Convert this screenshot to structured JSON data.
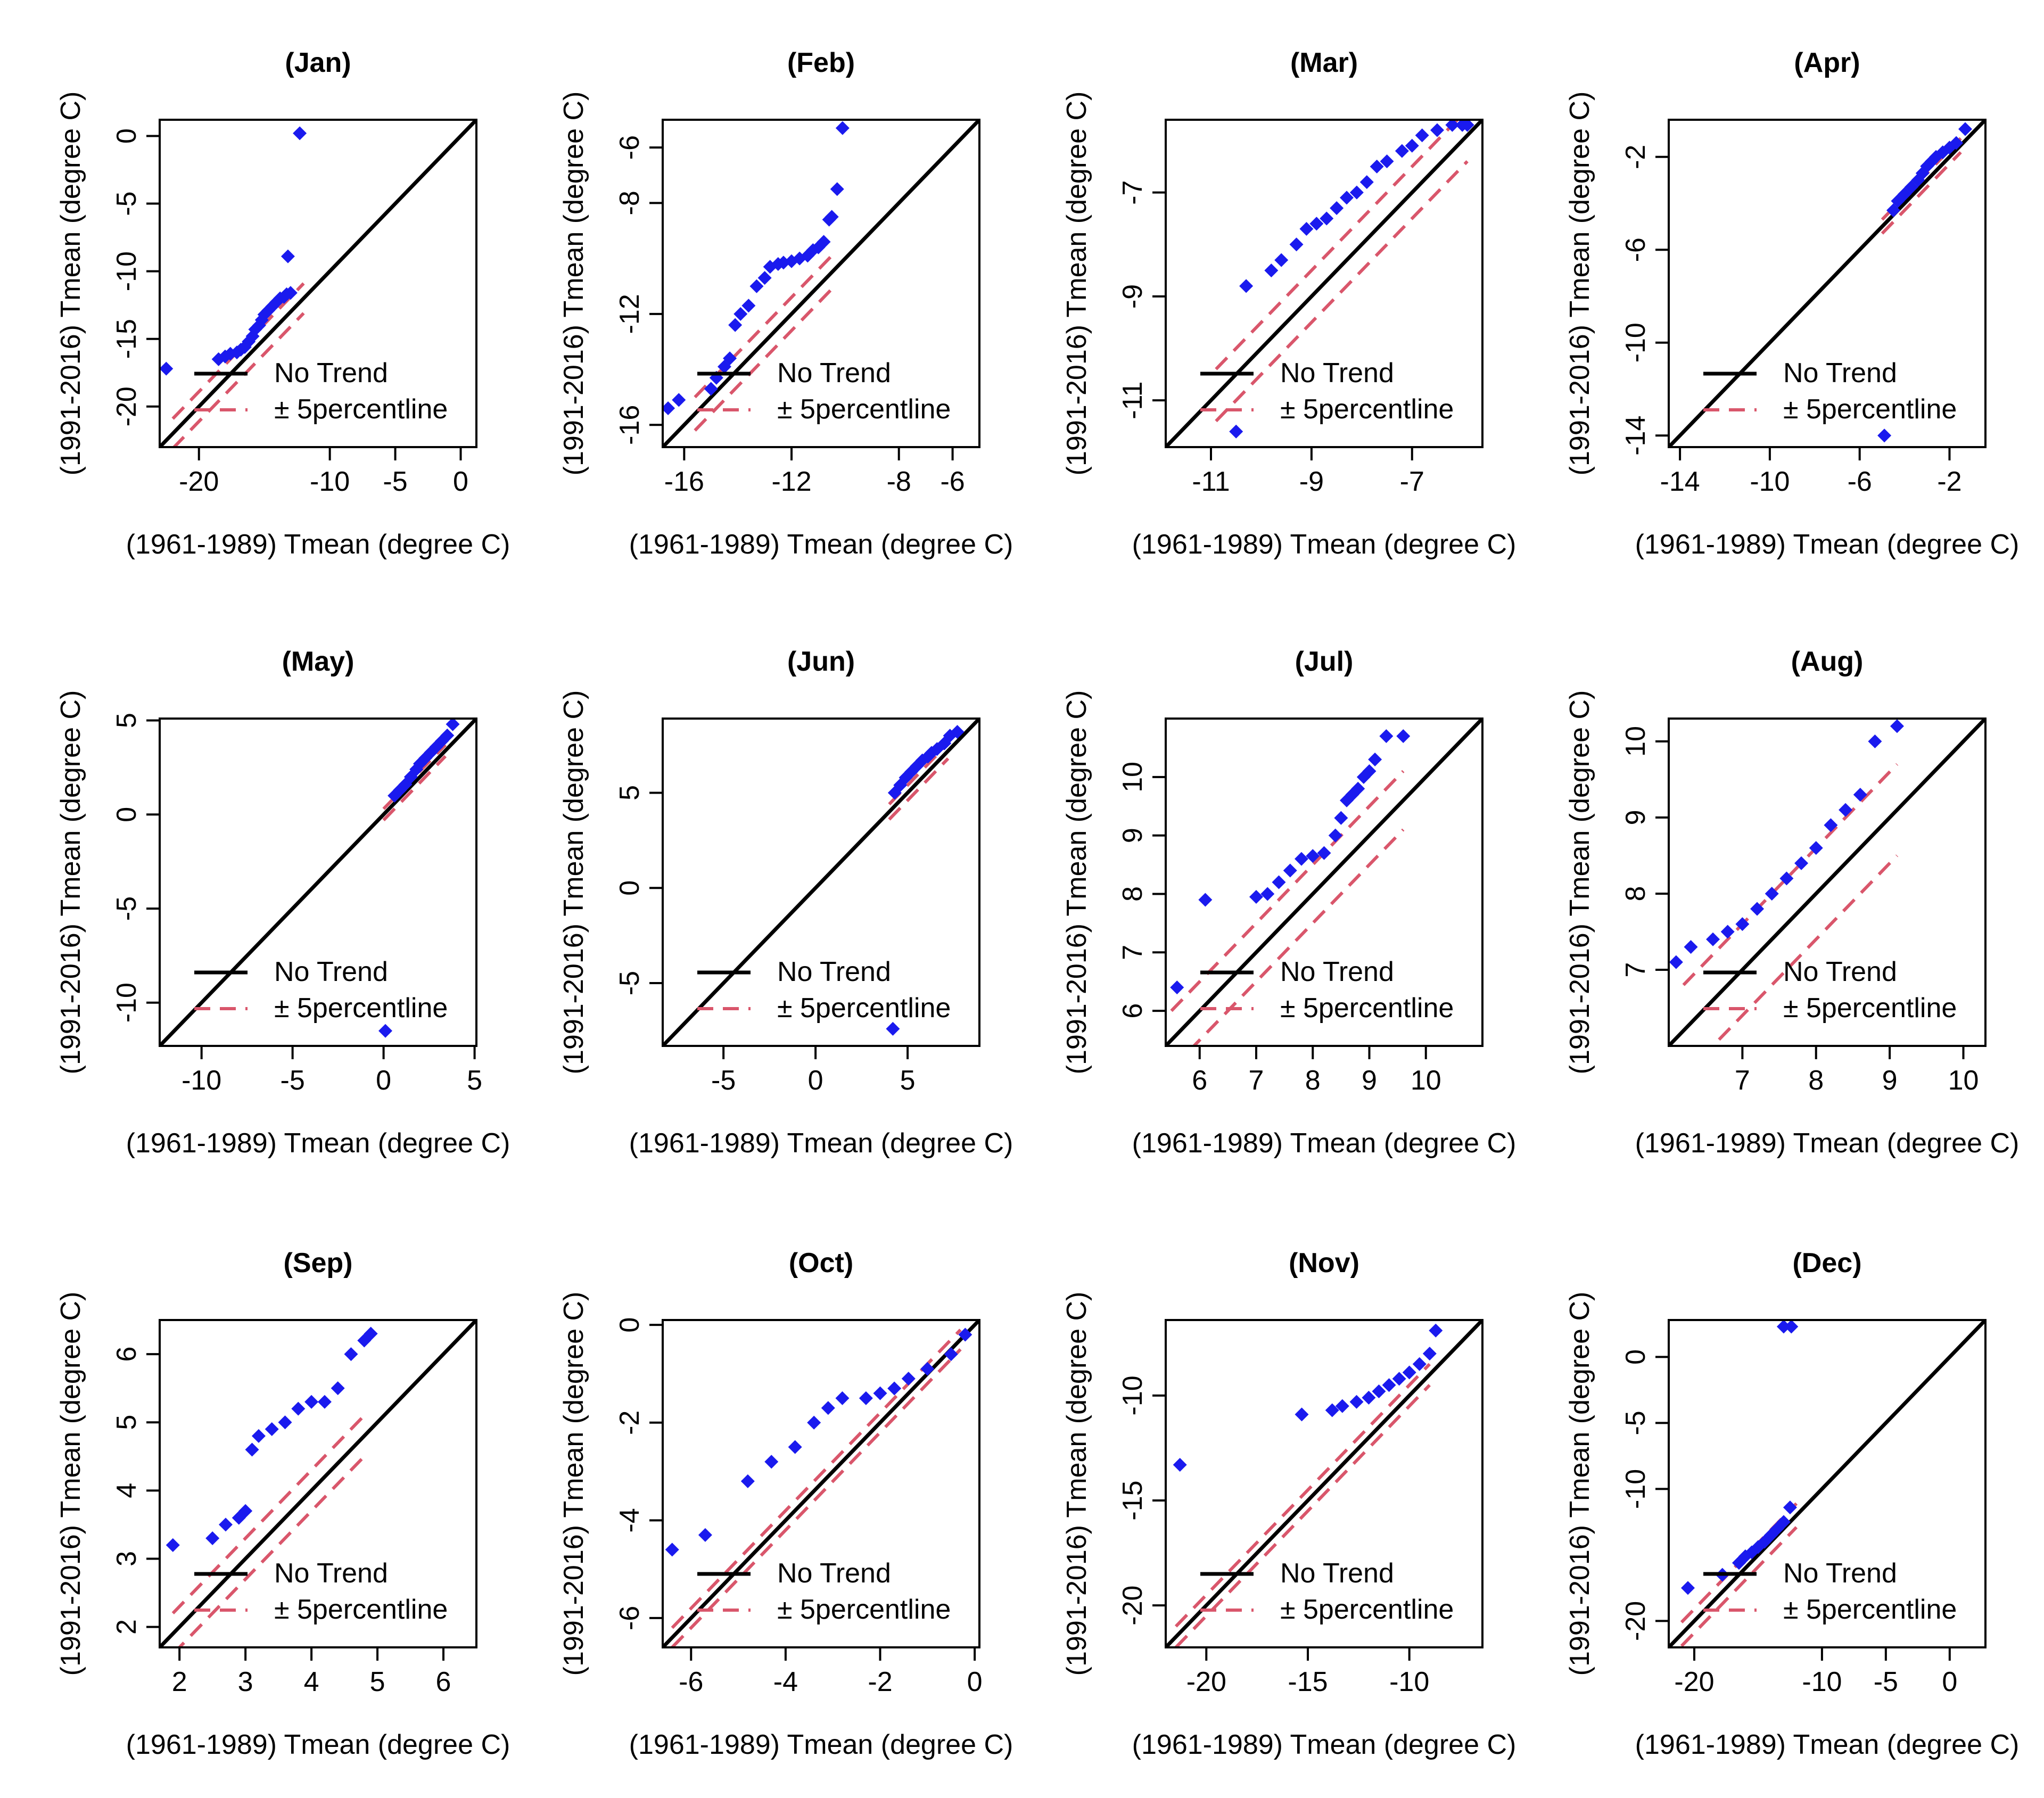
{
  "colors": {
    "points": "#1a1aee",
    "identity": "#000000",
    "band": "#d9566b"
  },
  "chart_data": [
    {
      "type": "scatter",
      "title": "(Jan)",
      "xlabel": "(1961-1989) Tmean (degree C)",
      "ylabel": "(1991-2016) Tmean (degree C)",
      "xlim": [
        -23,
        1.2
      ],
      "ylim": [
        -23,
        1.2
      ],
      "xticks": [
        -20,
        -10,
        -5,
        0
      ],
      "yticks": [
        0,
        -5,
        -10,
        -15,
        -20
      ],
      "legend": {
        "identity": "No Trend",
        "band": "± 5percentline"
      },
      "identity": [
        -23,
        1.2
      ],
      "band": {
        "x": [
          -22,
          -12
        ],
        "offset": 1.1
      },
      "x": [
        -22.5,
        -18.5,
        -18.0,
        -17.6,
        -17.1,
        -16.8,
        -16.5,
        -16.2,
        -15.9,
        -15.7,
        -15.4,
        -15.2,
        -15.0,
        -14.7,
        -14.4,
        -14.1,
        -13.8,
        -13.5,
        -13.3,
        -13.0,
        -13.2,
        -12.3
      ],
      "y": [
        -17.2,
        -16.5,
        -16.3,
        -16.1,
        -16.0,
        -15.8,
        -15.6,
        -15.2,
        -14.8,
        -14.3,
        -14.0,
        -13.6,
        -13.2,
        -12.9,
        -12.6,
        -12.3,
        -12.0,
        -11.9,
        -11.7,
        -11.6,
        -8.9,
        0.2
      ]
    },
    {
      "type": "scatter",
      "title": "(Feb)",
      "xlabel": "(1961-1989) Tmean (degree C)",
      "ylabel": "(1991-2016) Tmean (degree C)",
      "xlim": [
        -16.8,
        -5.0
      ],
      "ylim": [
        -16.8,
        -5.0
      ],
      "xticks": [
        -16,
        -12,
        -8,
        -6
      ],
      "yticks": [
        -6,
        -8,
        -12,
        -16
      ],
      "legend": {
        "identity": "No Trend",
        "band": "± 5percentline"
      },
      "identity": [
        -16.8,
        -5.0
      ],
      "band": {
        "x": [
          -15.6,
          -10.5
        ],
        "offset": 0.6
      },
      "x": [
        -16.6,
        -16.2,
        -15.0,
        -14.8,
        -14.5,
        -14.3,
        -14.1,
        -13.9,
        -13.6,
        -13.3,
        -13.0,
        -12.8,
        -12.5,
        -12.3,
        -12.0,
        -11.7,
        -11.4,
        -11.2,
        -11.0,
        -10.8,
        -10.6,
        -10.5,
        -10.3,
        -10.1
      ],
      "y": [
        -15.4,
        -15.1,
        -14.7,
        -14.3,
        -13.9,
        -13.6,
        -12.4,
        -12.0,
        -11.7,
        -11.0,
        -10.7,
        -10.3,
        -10.2,
        -10.15,
        -10.1,
        -10.0,
        -9.9,
        -9.7,
        -9.6,
        -9.4,
        -8.6,
        -8.5,
        -7.5,
        -5.3
      ]
    },
    {
      "type": "scatter",
      "title": "(Mar)",
      "xlabel": "(1961-1989) Tmean (degree C)",
      "ylabel": "(1991-2016) Tmean (degree C)",
      "xlim": [
        -11.9,
        -5.6
      ],
      "ylim": [
        -11.9,
        -5.6
      ],
      "xticks": [
        -11,
        -9,
        -7
      ],
      "yticks": [
        -7,
        -9,
        -11
      ],
      "legend": {
        "identity": "No Trend",
        "band": "± 5percentline"
      },
      "identity": [
        -11.9,
        -5.6
      ],
      "band": {
        "x": [
          -10.9,
          -5.9
        ],
        "offset": 0.5
      },
      "x": [
        -10.5,
        -10.3,
        -9.8,
        -9.6,
        -9.3,
        -9.1,
        -8.9,
        -8.7,
        -8.5,
        -8.3,
        -8.1,
        -7.9,
        -7.7,
        -7.5,
        -7.2,
        -7.0,
        -6.8,
        -6.5,
        -6.2,
        -6.0,
        -5.9
      ],
      "y": [
        -11.6,
        -8.8,
        -8.5,
        -8.3,
        -8.0,
        -7.7,
        -7.6,
        -7.5,
        -7.3,
        -7.1,
        -7.0,
        -6.8,
        -6.5,
        -6.4,
        -6.2,
        -6.1,
        -5.9,
        -5.8,
        -5.7,
        -5.7,
        -5.7
      ]
    },
    {
      "type": "scatter",
      "title": "(Apr)",
      "xlabel": "(1961-1989) Tmean (degree C)",
      "ylabel": "(1991-2016) Tmean (degree C)",
      "xlim": [
        -14.5,
        -0.4
      ],
      "ylim": [
        -14.5,
        -0.4
      ],
      "xticks": [
        -14,
        -10,
        -6,
        -2
      ],
      "yticks": [
        -2,
        -6,
        -10,
        -14
      ],
      "legend": {
        "identity": "No Trend",
        "band": "± 5percentline"
      },
      "identity": [
        -14.5,
        -0.4
      ],
      "band": {
        "x": [
          -5.0,
          -1.5
        ],
        "offset": 0.3
      },
      "x": [
        -4.9,
        -4.5,
        -4.3,
        -4.0,
        -3.7,
        -3.4,
        -3.2,
        -3.0,
        -2.8,
        -2.6,
        -2.3,
        -2.0,
        -1.7,
        -1.3
      ],
      "y": [
        -14.0,
        -4.3,
        -3.9,
        -3.6,
        -3.3,
        -3.0,
        -2.7,
        -2.4,
        -2.2,
        -2.0,
        -1.8,
        -1.6,
        -1.4,
        -0.8
      ]
    },
    {
      "type": "scatter",
      "title": "(May)",
      "xlabel": "(1961-1989) Tmean (degree C)",
      "ylabel": "(1991-2016) Tmean (degree C)",
      "xlim": [
        -12.3,
        5.1
      ],
      "ylim": [
        -12.3,
        5.1
      ],
      "xticks": [
        -10,
        -5,
        0,
        5
      ],
      "yticks": [
        5,
        0,
        -5,
        -10
      ],
      "legend": {
        "identity": "No Trend",
        "band": "± 5percentline"
      },
      "identity": [
        -12.3,
        5.1
      ],
      "band": {
        "x": [
          0.0,
          3.4
        ],
        "offset": 0.3
      },
      "x": [
        0.1,
        0.6,
        0.9,
        1.2,
        1.5,
        1.8,
        2.0,
        2.3,
        2.6,
        2.9,
        3.2,
        3.5,
        3.8
      ],
      "y": [
        -11.5,
        1.0,
        1.3,
        1.6,
        2.0,
        2.4,
        2.7,
        3.0,
        3.3,
        3.6,
        3.9,
        4.2,
        4.8
      ]
    },
    {
      "type": "scatter",
      "title": "(Jun)",
      "xlabel": "(1961-1989) Tmean (degree C)",
      "ylabel": "(1991-2016) Tmean (degree C)",
      "xlim": [
        -8.3,
        8.9
      ],
      "ylim": [
        -8.3,
        8.9
      ],
      "xticks": [
        -5,
        0,
        5
      ],
      "yticks": [
        5,
        0,
        -5
      ],
      "legend": {
        "identity": "No Trend",
        "band": "± 5percentline"
      },
      "identity": [
        -8.3,
        8.9
      ],
      "band": {
        "x": [
          4.0,
          7.2
        ],
        "offset": 0.4
      },
      "x": [
        4.2,
        4.3,
        4.6,
        4.9,
        5.2,
        5.5,
        5.8,
        6.1,
        6.3,
        6.6,
        7.0,
        7.3,
        7.7
      ],
      "y": [
        -7.4,
        5.0,
        5.4,
        5.8,
        6.1,
        6.4,
        6.7,
        6.9,
        7.1,
        7.3,
        7.6,
        8.0,
        8.2
      ]
    },
    {
      "type": "scatter",
      "title": "(Jul)",
      "xlabel": "(1961-1989) Tmean (degree C)",
      "ylabel": "(1991-2016) Tmean (degree C)",
      "xlim": [
        5.4,
        11.0
      ],
      "ylim": [
        5.4,
        11.0
      ],
      "xticks": [
        6,
        7,
        8,
        9,
        10
      ],
      "yticks": [
        6,
        7,
        8,
        9,
        10
      ],
      "legend": {
        "identity": "No Trend",
        "band": "± 5percentline"
      },
      "identity": [
        5.4,
        11.0
      ],
      "band": {
        "x": [
          5.5,
          9.6
        ],
        "offset": 0.5
      },
      "x": [
        5.6,
        6.1,
        7.0,
        7.2,
        7.4,
        7.6,
        7.8,
        8.0,
        8.2,
        8.4,
        8.5,
        8.6,
        8.7,
        8.8,
        8.9,
        9.0,
        9.1,
        9.3,
        9.6
      ],
      "y": [
        6.4,
        7.9,
        7.95,
        8.0,
        8.2,
        8.4,
        8.6,
        8.65,
        8.7,
        9.0,
        9.3,
        9.6,
        9.7,
        9.8,
        10.0,
        10.1,
        10.3,
        10.7,
        10.7
      ],
      "yrange_note": "axis printed 6 to 10"
    },
    {
      "type": "scatter",
      "title": "(Aug)",
      "xlabel": "(1961-1989) Tmean (degree C)",
      "ylabel": "(1991-2016) Tmean (degree C)",
      "xlim": [
        6.0,
        10.3
      ],
      "ylim": [
        6.0,
        10.3
      ],
      "xticks": [
        7,
        8,
        9,
        10
      ],
      "yticks": [
        7,
        8,
        9,
        10
      ],
      "legend": {
        "identity": "No Trend",
        "band": "± 5percentline"
      },
      "identity": [
        6.0,
        10.3
      ],
      "band": {
        "x": [
          6.2,
          9.1
        ],
        "offset": 0.6
      },
      "x": [
        6.1,
        6.3,
        6.6,
        6.8,
        7.0,
        7.2,
        7.4,
        7.6,
        7.8,
        8.0,
        8.2,
        8.4,
        8.6,
        8.8,
        9.1
      ],
      "y": [
        7.1,
        7.3,
        7.4,
        7.5,
        7.6,
        7.8,
        8.0,
        8.2,
        8.4,
        8.6,
        8.9,
        9.1,
        9.3,
        10.0,
        10.2
      ]
    },
    {
      "type": "scatter",
      "title": "(Sep)",
      "xlabel": "(1961-1989) Tmean (degree C)",
      "ylabel": "(1991-2016) Tmean (degree C)",
      "xlim": [
        1.7,
        6.5
      ],
      "ylim": [
        1.7,
        6.5
      ],
      "xticks": [
        2,
        3,
        4,
        5,
        6
      ],
      "yticks": [
        2,
        3,
        4,
        5,
        6
      ],
      "legend": {
        "identity": "No Trend",
        "band": "± 5percentline"
      },
      "identity": [
        1.7,
        6.5
      ],
      "band": {
        "x": [
          1.9,
          4.8
        ],
        "offset": 0.3
      },
      "x": [
        1.9,
        2.5,
        2.7,
        2.9,
        3.0,
        3.1,
        3.2,
        3.4,
        3.6,
        3.8,
        4.0,
        4.2,
        4.4,
        4.6,
        4.8,
        4.9
      ],
      "y": [
        3.2,
        3.3,
        3.5,
        3.6,
        3.7,
        4.6,
        4.8,
        4.9,
        5.0,
        5.2,
        5.3,
        5.3,
        5.5,
        6.0,
        6.2,
        6.3
      ]
    },
    {
      "type": "scatter",
      "title": "(Oct)",
      "xlabel": "(1961-1989) Tmean (degree C)",
      "ylabel": "(1991-2016) Tmean (degree C)",
      "xlim": [
        -6.6,
        0.1
      ],
      "ylim": [
        -6.6,
        0.1
      ],
      "xticks": [
        -6,
        -4,
        -2,
        0
      ],
      "yticks": [
        0,
        -2,
        -4,
        -6
      ],
      "legend": {
        "identity": "No Trend",
        "band": "± 5percentline"
      },
      "identity": [
        -6.6,
        0.1
      ],
      "band": {
        "x": [
          -6.4,
          -0.3
        ],
        "offset": 0.2
      },
      "x": [
        -6.4,
        -5.7,
        -4.8,
        -4.3,
        -3.8,
        -3.4,
        -3.1,
        -2.8,
        -2.3,
        -2.0,
        -1.7,
        -1.4,
        -1.0,
        -0.5,
        -0.2
      ],
      "y": [
        -4.6,
        -4.3,
        -3.2,
        -2.8,
        -2.5,
        -2.0,
        -1.7,
        -1.5,
        -1.5,
        -1.4,
        -1.3,
        -1.1,
        -0.9,
        -0.6,
        -0.2
      ]
    },
    {
      "type": "scatter",
      "title": "(Nov)",
      "xlabel": "(1961-1989) Tmean (degree C)",
      "ylabel": "(1991-2016) Tmean (degree C)",
      "xlim": [
        -22.0,
        -6.4
      ],
      "ylim": [
        -22.0,
        -6.4
      ],
      "xticks": [
        -20,
        -15,
        -10
      ],
      "yticks": [
        -10,
        -15,
        -20
      ],
      "legend": {
        "identity": "No Trend",
        "band": "± 5percentline"
      },
      "identity": [
        -22.0,
        -6.4
      ],
      "band": {
        "x": [
          -21.5,
          -9.0
        ],
        "offset": 0.5
      },
      "x": [
        -21.3,
        -15.3,
        -13.8,
        -13.3,
        -12.6,
        -12.0,
        -11.5,
        -11.0,
        -10.5,
        -10.0,
        -9.5,
        -9.0,
        -8.7
      ],
      "y": [
        -13.3,
        -10.9,
        -10.7,
        -10.5,
        -10.3,
        -10.1,
        -9.8,
        -9.5,
        -9.2,
        -8.9,
        -8.5,
        -8.0,
        -6.9
      ]
    },
    {
      "type": "scatter",
      "title": "(Dec)",
      "xlabel": "(1961-1989) Tmean (degree C)",
      "ylabel": "(1991-2016) Tmean (degree C)",
      "xlim": [
        -22.0,
        2.8
      ],
      "ylim": [
        -22.0,
        2.8
      ],
      "xticks": [
        -20,
        -10,
        -5,
        0
      ],
      "yticks": [
        0,
        -5,
        -10,
        -20
      ],
      "legend": {
        "identity": "No Trend",
        "band": "± 5percentline"
      },
      "identity": [
        -22.0,
        2.8
      ],
      "band": {
        "x": [
          -21.0,
          -12.0
        ],
        "offset": 0.9
      },
      "x": [
        -20.5,
        -17.8,
        -16.5,
        -16.0,
        -15.5,
        -15.0,
        -14.5,
        -14.0,
        -13.5,
        -13.0,
        -12.5,
        -13.0,
        -12.4
      ],
      "y": [
        -17.5,
        -16.5,
        -15.6,
        -15.1,
        -14.8,
        -14.4,
        -14.0,
        -13.5,
        -13.0,
        -12.5,
        -11.4,
        2.3,
        2.3
      ]
    }
  ]
}
